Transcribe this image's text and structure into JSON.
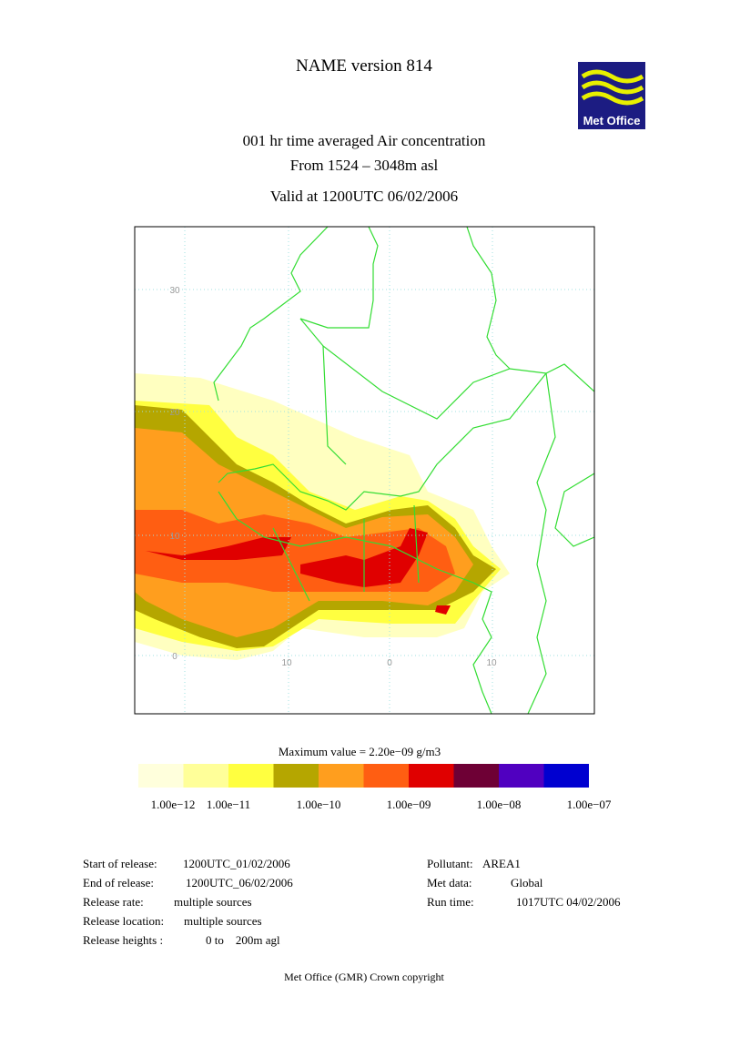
{
  "header": {
    "title": "NAME version 814",
    "logo": "Met Office",
    "subtitle_lines": [
      "001 hr time averaged   Air concentration",
      "From  1524 –  3048m asl"
    ],
    "valid": "Valid at 1200UTC 06/02/2006"
  },
  "map": {
    "lat_labels": [
      "30",
      "20",
      "10",
      "0"
    ],
    "lon_labels": [
      "10",
      "0",
      "10"
    ]
  },
  "colorbar": {
    "title": "Maximum value = 2.20e−09 g/m3",
    "colors": [
      "#ffffdc",
      "#ffff99",
      "#ffff40",
      "#b5a600",
      "#ff9e1e",
      "#ff5e12",
      "#e00000",
      "#6e0035",
      "#5000c0",
      "#0000d0"
    ],
    "labels": [
      "1.00e−12",
      "1.00e−11",
      "1.00e−10",
      "1.00e−09",
      "1.00e−08",
      "1.00e−07"
    ]
  },
  "release": [
    [
      "Start of release:",
      "1200UTC_01/02/2006"
    ],
    [
      "End of release:",
      "1200UTC_06/02/2006"
    ],
    [
      "Release rate:",
      "multiple sources"
    ],
    [
      "Release location:",
      "multiple sources"
    ],
    [
      "Release heights :",
      "0 to    200m agl"
    ]
  ],
  "run": [
    [
      "Pollutant:",
      "AREA1"
    ],
    [
      "Met data:",
      "Global"
    ],
    [
      "Run time:",
      "1017UTC 04/02/2006"
    ]
  ],
  "footer": "Met Office (GMR)  Crown copyright"
}
